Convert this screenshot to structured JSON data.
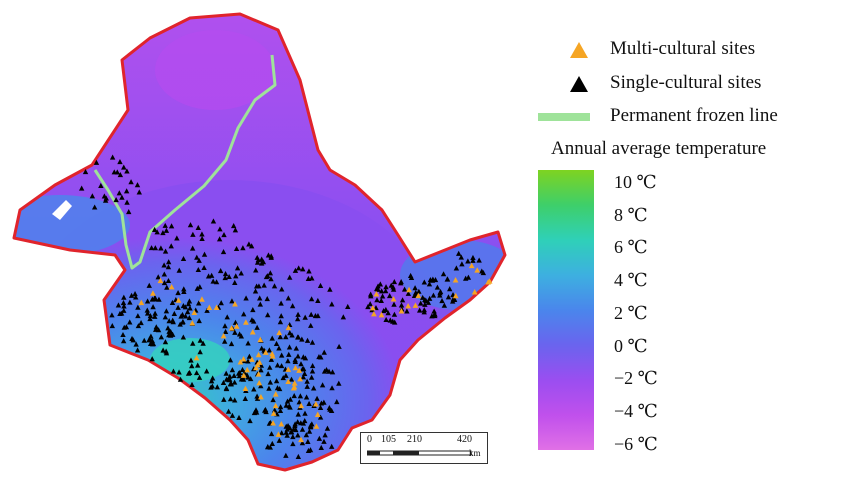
{
  "legend": {
    "multi": "Multi-cultural sites",
    "single": "Single-cultural sites",
    "frozen": "Permanent frozen line",
    "temp_title": "Annual average temperature",
    "ticks": [
      "10 ℃",
      "8 ℃",
      "6 ℃",
      "4 ℃",
      "2 ℃",
      "0 ℃",
      "−2 ℃",
      "−4 ℃",
      "−6 ℃"
    ],
    "ramp_colors": [
      "#7ed321",
      "#3ecf6a",
      "#2fd0b8",
      "#3db0e0",
      "#4a86ec",
      "#6a64ee",
      "#9a4ef0",
      "#c050ec",
      "#e070e6"
    ]
  },
  "scale": {
    "t0": "0",
    "t1": "105",
    "t2": "210",
    "t3": "420",
    "unit": "km"
  },
  "colors": {
    "boundary": "#e0242c",
    "frozen": "#9fe39a",
    "multi": "#f5a524",
    "single": "#000000"
  }
}
